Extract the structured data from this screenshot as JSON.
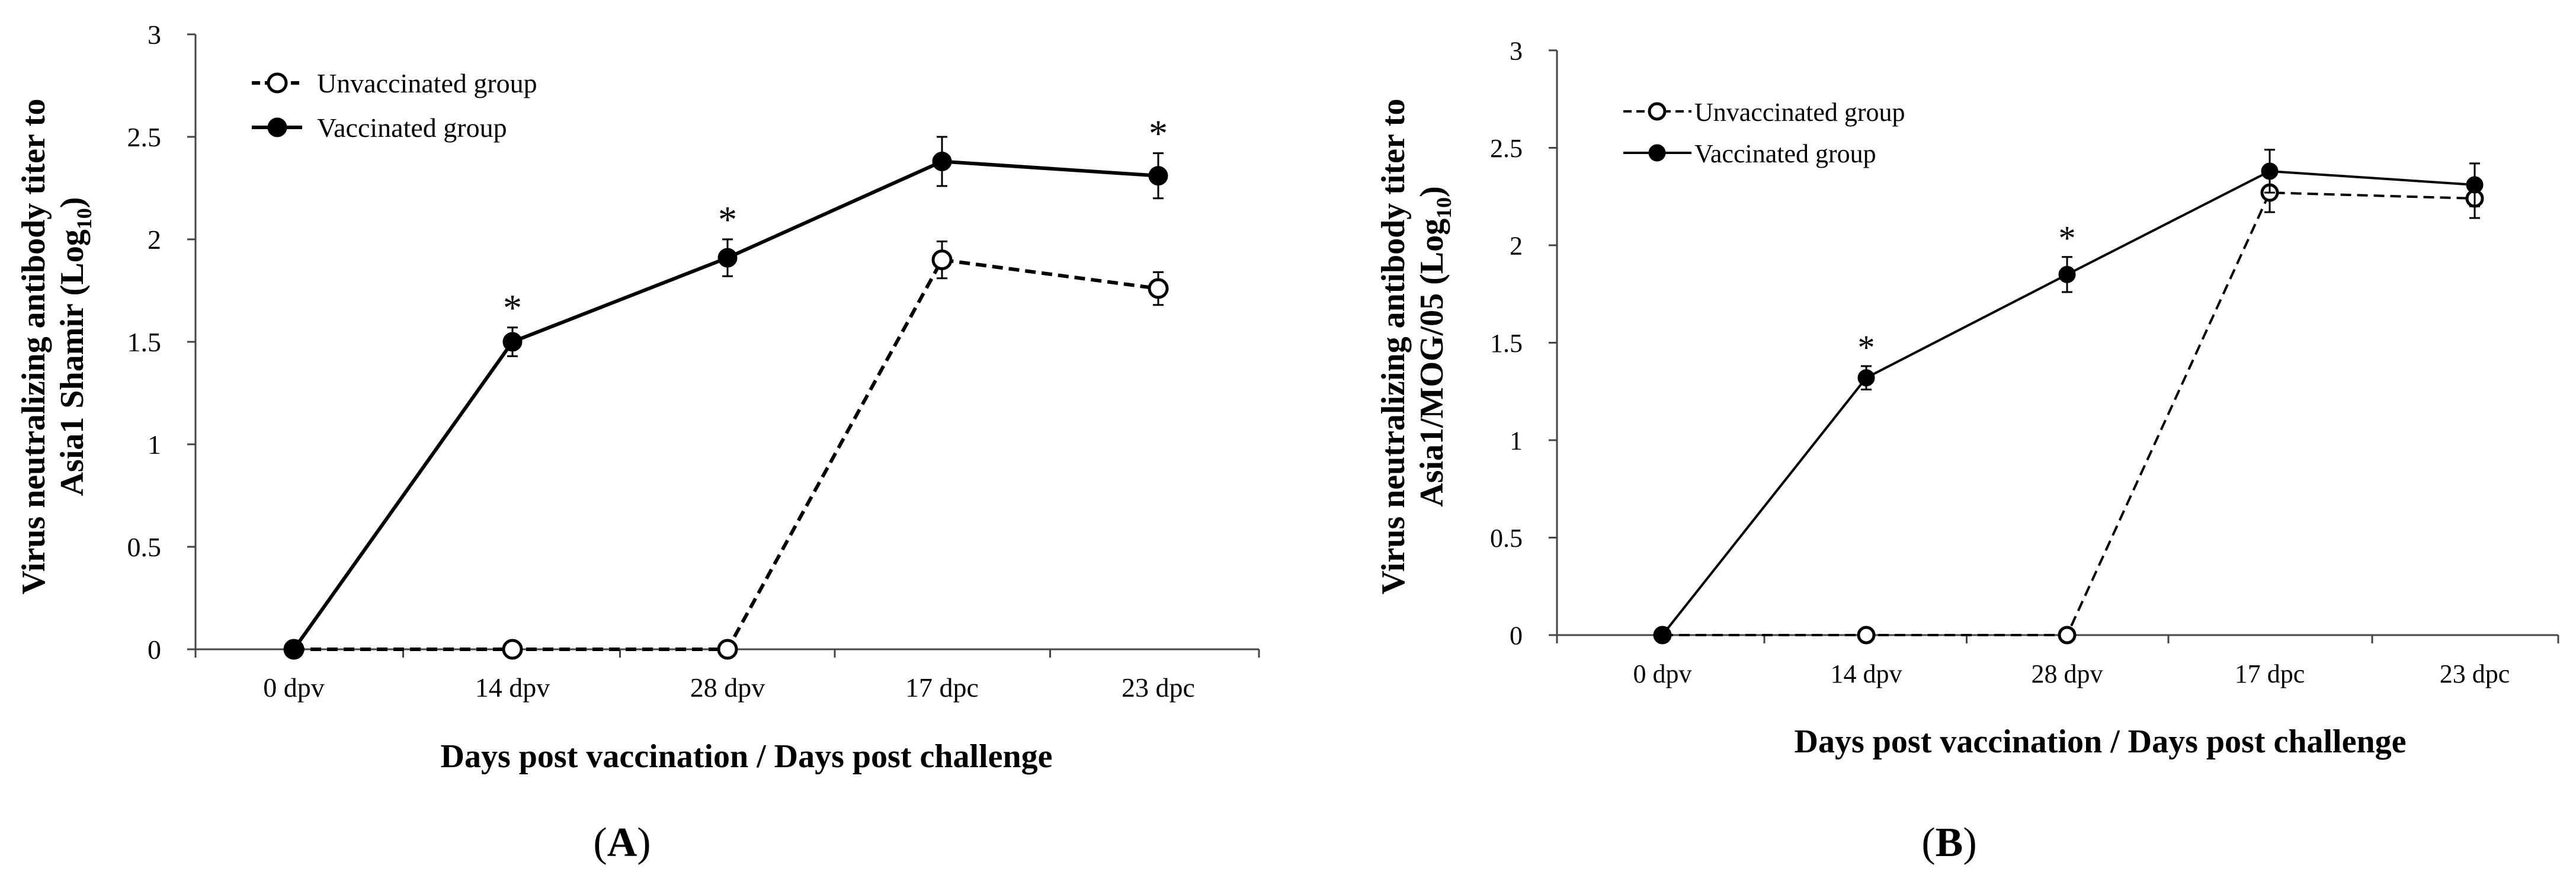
{
  "chart_data": [
    {
      "type": "line",
      "panel_label": "(A)",
      "panel_label_parts": [
        "(",
        "A",
        ")"
      ],
      "title": "",
      "xlabel": "Days post vaccination / Days post challenge",
      "ylabel_lines": [
        "Virus neutralizing antibody titer to",
        "Asia1 Shamir (Log",
        "10",
        ")"
      ],
      "categories": [
        "0 dpv",
        "14 dpv",
        "28 dpv",
        "17 dpc",
        "23 dpc"
      ],
      "ylim": [
        0,
        3
      ],
      "yticks": [
        "0",
        "0.5",
        "1",
        "1.5",
        "2",
        "2.5",
        "3"
      ],
      "grid": false,
      "legend_position": "top-left",
      "series": [
        {
          "name": "Unvaccinated group",
          "values": [
            0,
            0,
            0,
            1.9,
            1.76
          ],
          "errors": [
            0,
            0,
            0,
            0.09,
            0.08
          ],
          "line": "dashed",
          "marker": "open"
        },
        {
          "name": "Vaccinated group",
          "values": [
            0,
            1.5,
            1.91,
            2.38,
            2.31
          ],
          "errors": [
            0,
            0.07,
            0.09,
            0.12,
            0.11
          ],
          "line": "solid",
          "marker": "filled"
        }
      ],
      "significance": [
        "",
        "*",
        "*",
        "",
        "*"
      ]
    },
    {
      "type": "line",
      "panel_label": "(B)",
      "panel_label_parts": [
        "(",
        "B",
        ")"
      ],
      "title": "",
      "xlabel": "Days post vaccination / Days post challenge",
      "ylabel_lines": [
        "Virus neutralizing antibody titer to",
        "Asia1/MOG/05 (Log",
        "10",
        ")"
      ],
      "categories": [
        "0 dpv",
        "14 dpv",
        "28 dpv",
        "17 dpc",
        "23 dpc"
      ],
      "ylim": [
        0,
        3
      ],
      "yticks": [
        "0",
        "0.5",
        "1",
        "1.5",
        "2",
        "2.5",
        "3"
      ],
      "grid": false,
      "legend_position": "top-left",
      "series": [
        {
          "name": "Unvaccinated group",
          "values": [
            0,
            0,
            0,
            2.27,
            2.24
          ],
          "errors": [
            0,
            0,
            0,
            0.1,
            0.1
          ],
          "line": "dashed",
          "marker": "open"
        },
        {
          "name": "Vaccinated group",
          "values": [
            0,
            1.32,
            1.85,
            2.38,
            2.31
          ],
          "errors": [
            0,
            0.06,
            0.09,
            0.11,
            0.11
          ],
          "line": "solid",
          "marker": "filled"
        }
      ],
      "significance": [
        "",
        "*",
        "*",
        "",
        ""
      ]
    }
  ]
}
